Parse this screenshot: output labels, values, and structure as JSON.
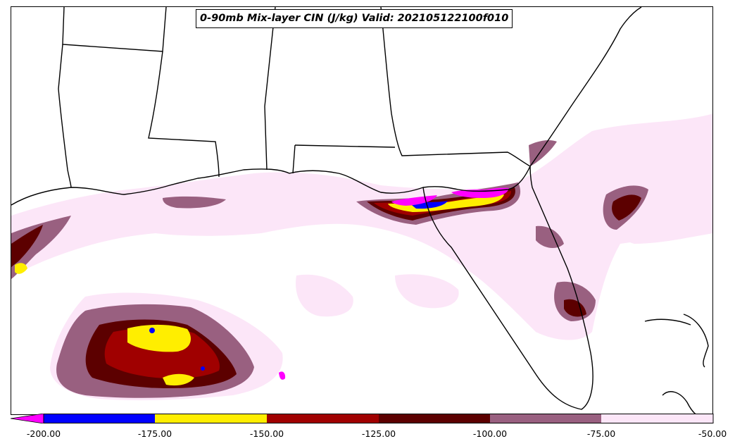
{
  "title": "0-90mb Mix-layer CIN (J/kg) Valid: 202105122100f010",
  "colorbar": {
    "labels": [
      "-200.00",
      "-175.00",
      "-150.00",
      "-125.00",
      "-100.00",
      "-75.00",
      "-50.00"
    ],
    "colors": [
      "#ff00ff",
      "#0000ff",
      "#ffee00",
      "#a00000",
      "#5c0000",
      "#996080",
      "#fce6f8"
    ]
  },
  "legend_colors": {
    "lt200": "#ff00ff",
    "c200_175": "#0000ff",
    "c175_150": "#ffee00",
    "c150_125": "#a00000",
    "c125_100": "#5c0000",
    "c100_75": "#996080",
    "c75_50": "#fce6f8"
  }
}
